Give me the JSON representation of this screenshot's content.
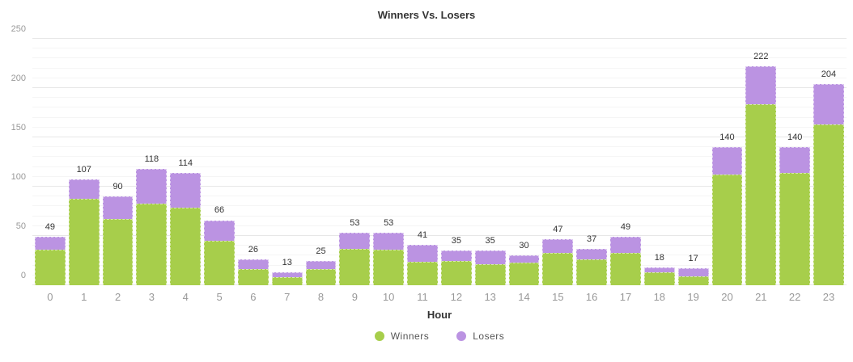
{
  "title": "Winners Vs. Losers",
  "axes": {
    "x_title": "Hour",
    "yticks": [
      0,
      50,
      100,
      150,
      200,
      250
    ]
  },
  "colors": {
    "winners": "#a7ce4b",
    "losers": "#bb93e2",
    "grid_major": "#e7e7e7",
    "grid_minor": "#f5f5f5",
    "tick_text": "#999999",
    "label_text": "#333333"
  },
  "chart_data": {
    "type": "bar",
    "stacked": true,
    "title": "Winners Vs. Losers",
    "xlabel": "Hour",
    "ylabel": "",
    "categories": [
      "0",
      "1",
      "2",
      "3",
      "4",
      "5",
      "6",
      "7",
      "8",
      "9",
      "10",
      "11",
      "12",
      "13",
      "14",
      "15",
      "16",
      "17",
      "18",
      "19",
      "20",
      "21",
      "22",
      "23"
    ],
    "series": [
      {
        "name": "Winners",
        "color": "#a7ce4b",
        "values": [
          36,
          88,
          67,
          83,
          79,
          45,
          16,
          8,
          16,
          37,
          36,
          24,
          25,
          21,
          23,
          33,
          26,
          33,
          13,
          9,
          112,
          184,
          114,
          163
        ]
      },
      {
        "name": "Losers",
        "color": "#bb93e2",
        "values": [
          13,
          19,
          23,
          35,
          35,
          21,
          10,
          5,
          9,
          16,
          17,
          17,
          10,
          14,
          7,
          14,
          11,
          16,
          5,
          8,
          28,
          38,
          26,
          41
        ]
      }
    ],
    "totals": [
      49,
      107,
      90,
      118,
      114,
      66,
      26,
      13,
      25,
      53,
      53,
      41,
      35,
      35,
      30,
      47,
      37,
      49,
      18,
      17,
      140,
      222,
      140,
      204
    ],
    "ylim": [
      0,
      250
    ],
    "yticks": [
      0,
      50,
      100,
      150,
      200,
      250
    ],
    "minor_grid_step": 10,
    "grid": true,
    "legend_position": "bottom"
  }
}
